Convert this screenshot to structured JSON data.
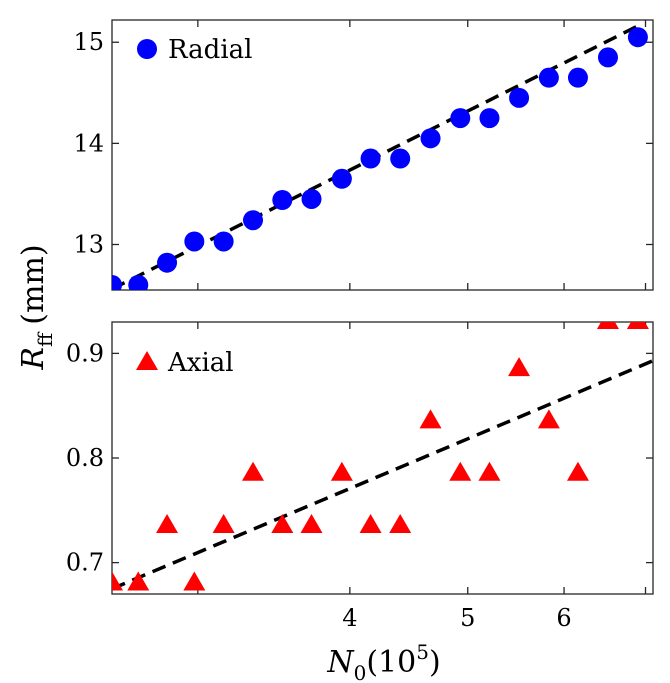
{
  "chart_data": [
    {
      "type": "scatter",
      "panel": "top",
      "x_scale": "log",
      "legend_position": "top-left",
      "color": "#0000ff",
      "marker": "circle",
      "ylim": [
        12.55,
        15.22
      ],
      "yticks": [
        13,
        14,
        15
      ],
      "ytick_labels": [
        "13",
        "14",
        "15"
      ],
      "series": [
        {
          "name": "Radial",
          "x": [
            2.55,
            2.68,
            2.83,
            2.98,
            3.15,
            3.33,
            3.52,
            3.72,
            3.94,
            4.16,
            4.4,
            4.66,
            4.93,
            5.21,
            5.51,
            5.83,
            6.16,
            6.52,
            6.9
          ],
          "y": [
            12.6,
            12.6,
            12.82,
            13.03,
            13.03,
            13.24,
            13.44,
            13.45,
            13.65,
            13.85,
            13.85,
            14.05,
            14.25,
            14.25,
            14.45,
            14.65,
            14.65,
            14.85,
            15.05
          ]
        }
      ],
      "fit_line": {
        "x": [
          2.55,
          6.95
        ],
        "y": [
          12.56,
          15.18
        ],
        "style": "dashed",
        "color": "#000000"
      }
    },
    {
      "type": "scatter",
      "panel": "bottom",
      "x_scale": "log",
      "legend_position": "top-left",
      "color": "#ff0000",
      "marker": "triangle",
      "ylim": [
        0.67,
        0.93
      ],
      "yticks": [
        0.7,
        0.8,
        0.9
      ],
      "ytick_labels": [
        "0.7",
        "0.8",
        "0.9"
      ],
      "xticks": [
        4,
        5,
        6
      ],
      "xtick_labels": [
        "4",
        "5",
        "6"
      ],
      "series": [
        {
          "name": "Axial",
          "x": [
            2.55,
            2.68,
            2.83,
            2.98,
            3.15,
            3.33,
            3.52,
            3.72,
            3.94,
            4.16,
            4.4,
            4.66,
            4.93,
            5.21,
            5.51,
            5.83,
            6.16,
            6.52,
            6.9
          ],
          "y": [
            0.68,
            0.68,
            0.735,
            0.68,
            0.735,
            0.785,
            0.735,
            0.735,
            0.785,
            0.735,
            0.735,
            0.835,
            0.785,
            0.785,
            0.885,
            0.835,
            0.785,
            0.93,
            0.93
          ]
        }
      ],
      "fit_line": {
        "x": [
          2.55,
          7.1
        ],
        "y": [
          0.675,
          0.893
        ],
        "style": "dashed",
        "color": "#000000"
      }
    }
  ],
  "y_label": {
    "symbol": "R",
    "subscript": "ff",
    "unit": "(mm)"
  },
  "x_label": {
    "symbol": "N",
    "subscript": "0",
    "unit_base": "(10",
    "unit_exp": "5",
    "unit_close": ")"
  }
}
